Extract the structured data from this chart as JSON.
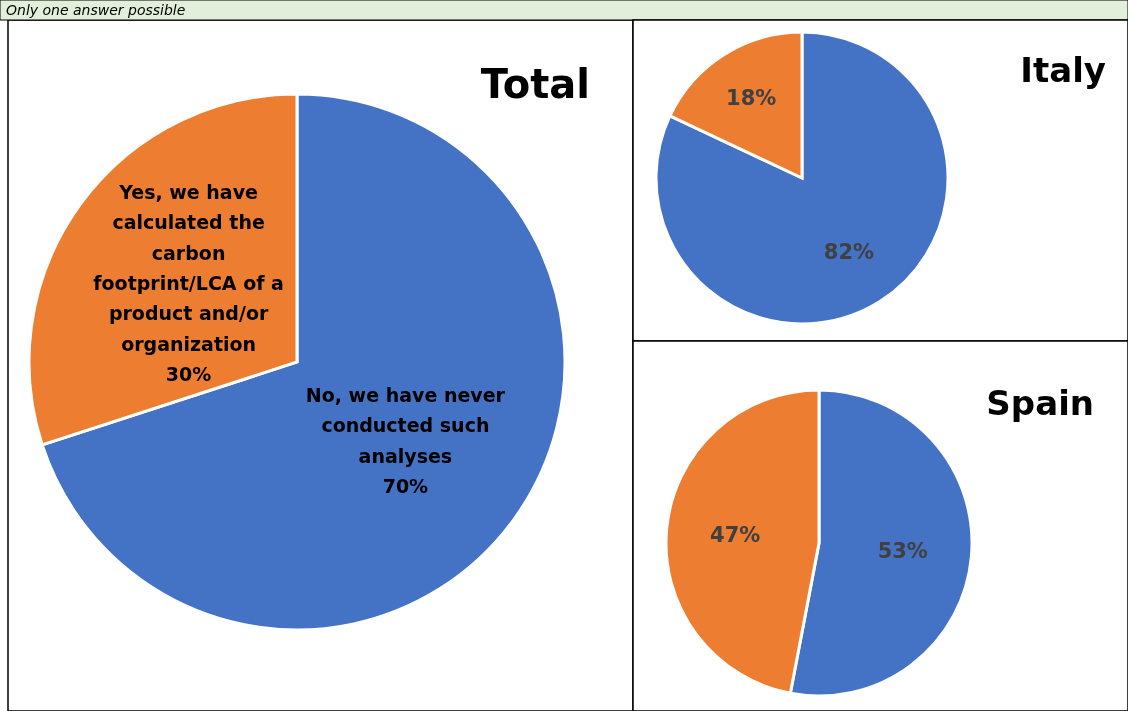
{
  "chart_data": [
    {
      "type": "pie",
      "title": "Total",
      "annotations": [
        "Only one answer possible"
      ],
      "categories": [
        "No, we have never conducted such analyses",
        "Yes, we have calculated the carbon footprint/LCA of a product and/or organization"
      ],
      "values": [
        70,
        30
      ],
      "colors": [
        "#4472c4",
        "#ed7d31"
      ],
      "value_labels": [
        "70%",
        "30%"
      ]
    },
    {
      "type": "pie",
      "title": "Italy",
      "categories": [
        null,
        null
      ],
      "values": [
        82,
        18
      ],
      "colors": [
        "#4472c4",
        "#ed7d31"
      ],
      "value_labels": [
        "82%",
        "18%"
      ]
    },
    {
      "type": "pie",
      "title": "Spain",
      "categories": [
        null,
        null
      ],
      "values": [
        53,
        47
      ],
      "colors": [
        "#4472c4",
        "#ed7d31"
      ],
      "value_labels": [
        "53%",
        "47%"
      ]
    }
  ]
}
